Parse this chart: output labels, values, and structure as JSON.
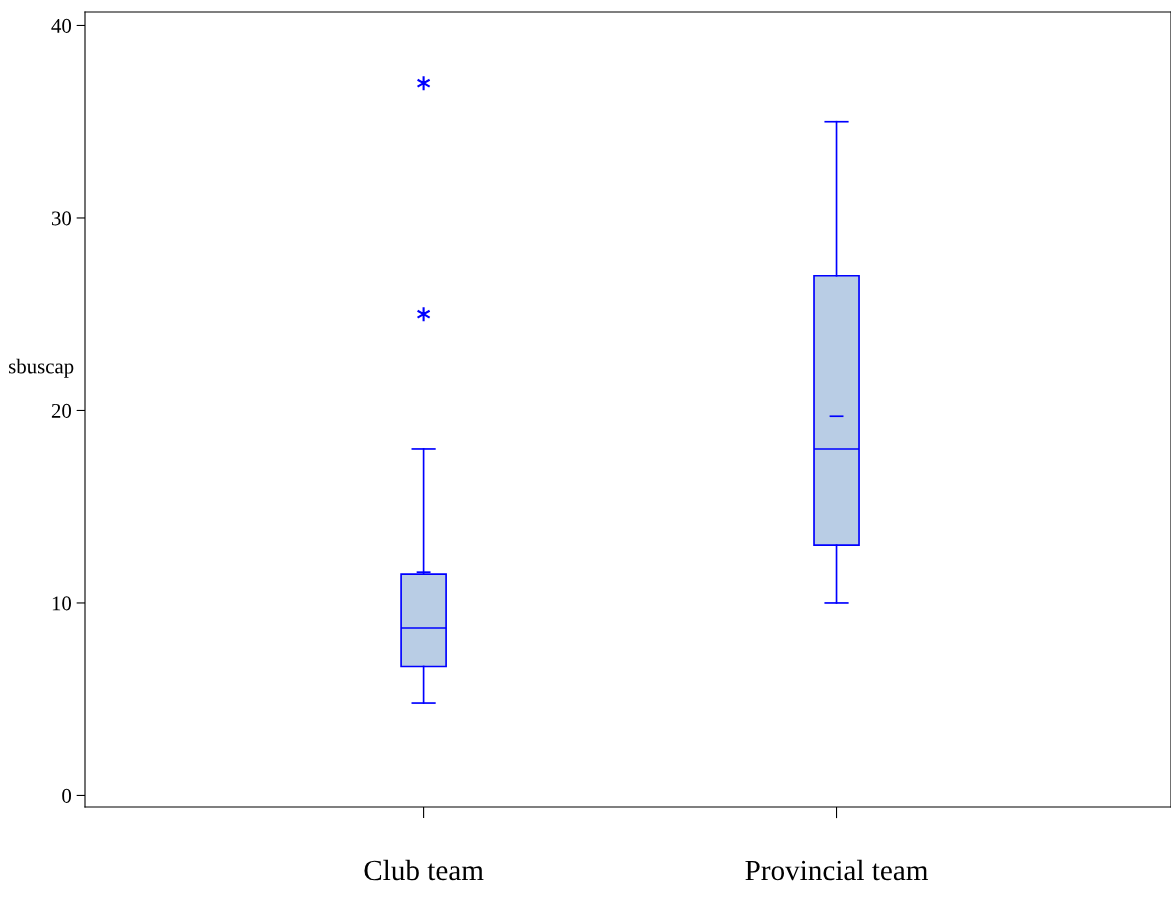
{
  "chart_data": {
    "type": "box",
    "ylabel": "sbuscap",
    "categories": [
      "Club team",
      "Provincial team"
    ],
    "series": [
      {
        "color": "#0000ff",
        "boxes": [
          {
            "low": 4.8,
            "q1": 6.7,
            "median": 8.7,
            "q3": 11.5,
            "high": 18,
            "mean": 11.6,
            "outliers": [
              25,
              37
            ]
          },
          {
            "low": 10,
            "q1": 13,
            "median": 18,
            "q3": 27,
            "high": 35,
            "mean": 19.7
          }
        ]
      }
    ],
    "colors": [
      "#b9cde5",
      "#b9cde5"
    ],
    "ylim": [
      -0.6,
      40.7
    ],
    "yticks": [
      0,
      10,
      20,
      30,
      40
    ],
    "grid": false,
    "marker": "star"
  }
}
